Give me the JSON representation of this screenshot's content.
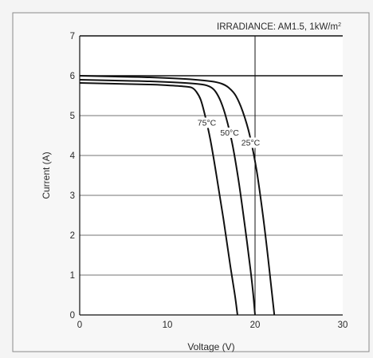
{
  "chart_data": {
    "type": "line",
    "title": "",
    "annotation": {
      "text_main": "IRRADIANCE: AM1.5, 1kW/m",
      "text_sup": "2"
    },
    "xlabel": "Voltage (V)",
    "ylabel": "Current (A)",
    "xlim": [
      0,
      30
    ],
    "ylim": [
      0,
      7
    ],
    "x_ticks": [
      0,
      10,
      20,
      30
    ],
    "y_ticks": [
      0,
      1,
      2,
      3,
      4,
      5,
      6,
      7
    ],
    "grid": {
      "horizontal": true,
      "vertical": false
    },
    "reference_lines": {
      "vertical_x": 20,
      "horizontal_y": 6,
      "top_y": 7
    },
    "series": [
      {
        "name": "75°C",
        "label_at": {
          "x": 14.5,
          "y": 4.75
        },
        "points": [
          [
            0,
            5.82
          ],
          [
            4,
            5.8
          ],
          [
            8,
            5.78
          ],
          [
            10,
            5.76
          ],
          [
            12,
            5.73
          ],
          [
            12.8,
            5.7
          ],
          [
            13.3,
            5.6
          ],
          [
            13.8,
            5.4
          ],
          [
            14.3,
            5.0
          ],
          [
            14.9,
            4.4
          ],
          [
            15.6,
            3.5
          ],
          [
            16.4,
            2.4
          ],
          [
            17.2,
            1.2
          ],
          [
            17.7,
            0.5
          ],
          [
            18.0,
            0
          ]
        ]
      },
      {
        "name": "50°C",
        "label_at": {
          "x": 17.1,
          "y": 4.5
        },
        "points": [
          [
            0,
            5.9
          ],
          [
            4,
            5.88
          ],
          [
            8,
            5.86
          ],
          [
            12,
            5.82
          ],
          [
            14,
            5.78
          ],
          [
            14.9,
            5.72
          ],
          [
            15.5,
            5.6
          ],
          [
            16.1,
            5.35
          ],
          [
            16.7,
            4.95
          ],
          [
            17.4,
            4.3
          ],
          [
            18.1,
            3.4
          ],
          [
            18.8,
            2.3
          ],
          [
            19.5,
            1.1
          ],
          [
            19.8,
            0.5
          ],
          [
            20.0,
            0
          ]
        ]
      },
      {
        "name": "25°C",
        "label_at": {
          "x": 19.5,
          "y": 4.25
        },
        "points": [
          [
            0,
            6.0
          ],
          [
            4,
            5.98
          ],
          [
            8,
            5.96
          ],
          [
            12,
            5.92
          ],
          [
            15,
            5.86
          ],
          [
            16.2,
            5.8
          ],
          [
            17.0,
            5.7
          ],
          [
            17.8,
            5.5
          ],
          [
            18.6,
            5.1
          ],
          [
            19.4,
            4.5
          ],
          [
            20.2,
            3.6
          ],
          [
            20.9,
            2.5
          ],
          [
            21.5,
            1.4
          ],
          [
            21.9,
            0.6
          ],
          [
            22.2,
            0
          ]
        ]
      }
    ]
  }
}
